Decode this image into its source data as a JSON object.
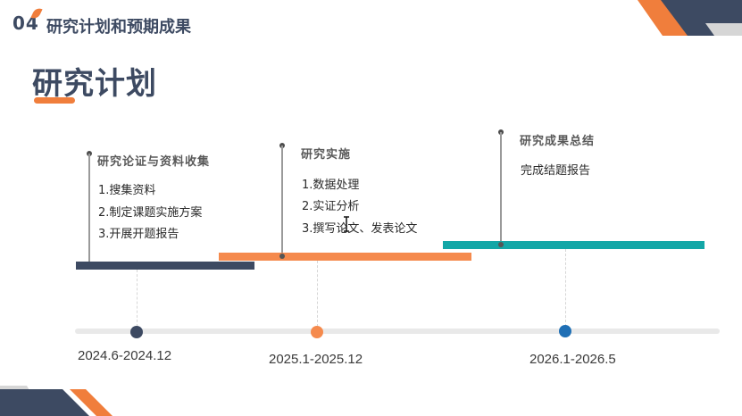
{
  "header": {
    "section_number": "04",
    "section_title": "研究计划和预期成果"
  },
  "main_title": "研究计划",
  "phases": [
    {
      "heading": "研究论证与资料收集",
      "items": [
        "1.搜集资料",
        "2.制定课题实施方案",
        "3.开展开题报告"
      ],
      "color": "#3d4a62"
    },
    {
      "heading": "研究实施",
      "items": [
        "1.数据处理",
        "2.实证分析",
        "3.撰写论文、发表论文"
      ],
      "color": "#f58a4d"
    },
    {
      "heading": "研究成果总结",
      "items": [
        "完成结题报告"
      ],
      "color": "#13a7a7"
    }
  ],
  "timeline": {
    "milestones": [
      {
        "date": "2024.6-2024.12",
        "color": "#3d4a62"
      },
      {
        "date": "2025.1-2025.12",
        "color": "#f58a4d"
      },
      {
        "date": "2026.1-2026.5",
        "color": "#1f6fb5"
      }
    ]
  },
  "colors": {
    "primary": "#3d4a62",
    "accent": "#f07e3c",
    "teal": "#13a7a7",
    "blue": "#1f6fb5"
  }
}
